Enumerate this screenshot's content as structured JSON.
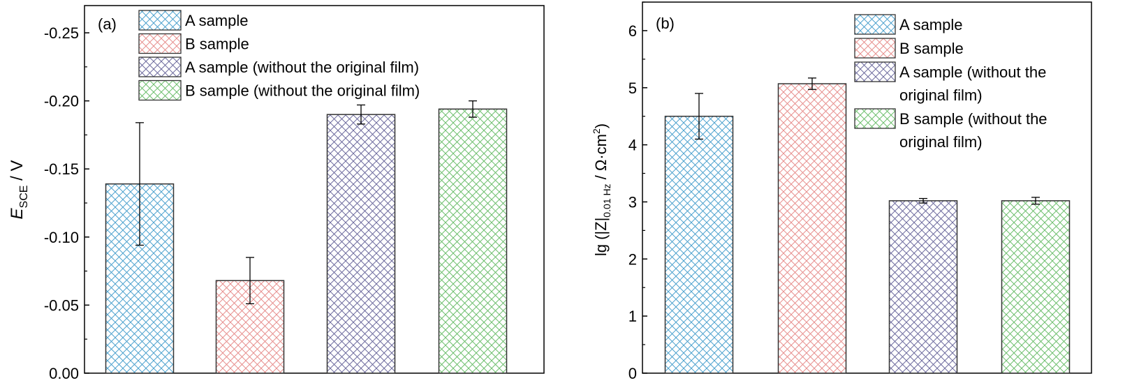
{
  "chart_data": [
    {
      "type": "bar",
      "panel_label": "(a)",
      "ylabel": {
        "main": "E",
        "sub": "SCE",
        "tail": " / V"
      },
      "ylim": [
        0,
        -0.27
      ],
      "yticks": [
        "0.00",
        "-0.05",
        "-0.10",
        "-0.15",
        "-0.20",
        "-0.25"
      ],
      "ytick_values": [
        0,
        -0.05,
        -0.1,
        -0.15,
        -0.2,
        -0.25
      ],
      "categories": [
        "A sample",
        "B sample",
        "A sample (without the original film)",
        "B sample (without the original film)"
      ],
      "values": [
        -0.139,
        -0.068,
        -0.19,
        -0.194
      ],
      "errors": [
        0.045,
        0.017,
        0.007,
        0.006
      ],
      "legend": {
        "placement": "top-center",
        "entries": [
          {
            "lines": [
              "A sample"
            ]
          },
          {
            "lines": [
              "B sample"
            ]
          },
          {
            "lines": [
              "A sample (without the original film)"
            ]
          },
          {
            "lines": [
              "B sample (without the original film)"
            ]
          }
        ]
      },
      "grid": false
    },
    {
      "type": "bar",
      "panel_label": "(b)",
      "ylabel": {
        "main": "lg (|Z|",
        "sub": "0.01 Hz",
        "tail": " / Ω·cm",
        "sup": "2",
        "close": ")"
      },
      "ylim": [
        0,
        6.5
      ],
      "yticks": [
        "0",
        "1",
        "2",
        "3",
        "4",
        "5",
        "6"
      ],
      "ytick_values": [
        0,
        1,
        2,
        3,
        4,
        5,
        6
      ],
      "categories": [
        "A sample",
        "B sample",
        "A sample (without the original film)",
        "B sample (without the original film)"
      ],
      "values": [
        4.5,
        5.07,
        3.02,
        3.02
      ],
      "errors": [
        0.4,
        0.1,
        0.04,
        0.06
      ],
      "legend": {
        "placement": "top-right",
        "entries": [
          {
            "lines": [
              "A sample"
            ]
          },
          {
            "lines": [
              "B sample"
            ]
          },
          {
            "lines": [
              "A sample (without the",
              "original film)"
            ]
          },
          {
            "lines": [
              "B sample (without the",
              "original film)"
            ]
          }
        ]
      },
      "grid": false
    }
  ],
  "colors": [
    "#4fa3cf",
    "#e8908f",
    "#6f6d9f",
    "#6fbf6f"
  ],
  "series_colors": [
    "#4fa3cf",
    "#e8908f",
    "#6f6d9f",
    "#6fbf6f"
  ]
}
